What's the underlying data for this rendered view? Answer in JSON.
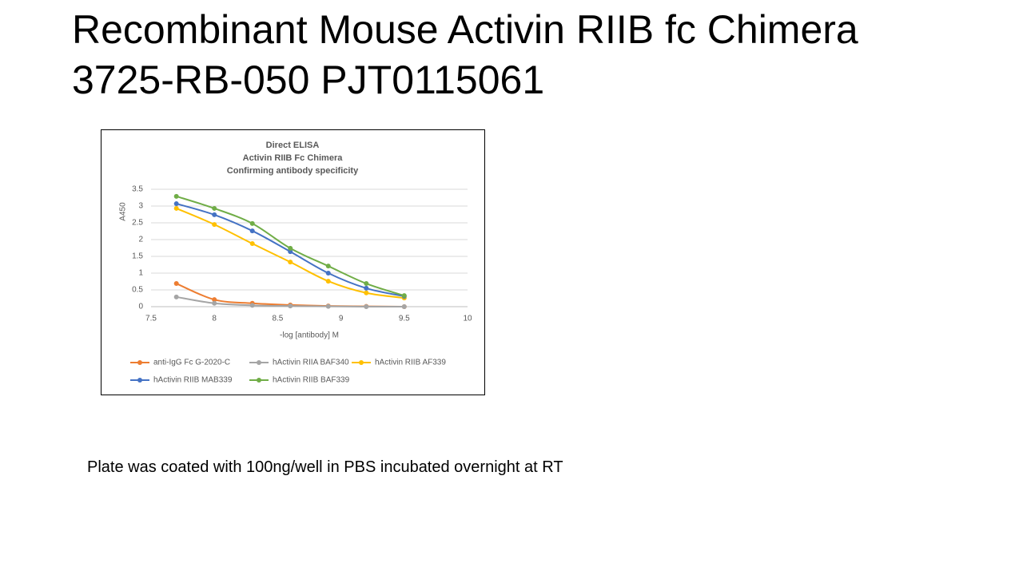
{
  "slide": {
    "title": [
      "Recombinant Mouse Activin RIIB fc Chimera",
      "3725-RB-050 PJT0115061"
    ],
    "note": "Plate was coated with 100ng/well in PBS incubated overnight at RT"
  },
  "chart_data": {
    "type": "line",
    "title": [
      "Direct ELISA",
      "Activin RIIB  Fc Chimera",
      "Confirming antibody specificity"
    ],
    "x_label": "-log [antibody] M",
    "y_label": "A450",
    "x": [
      7.7,
      8.0,
      8.3,
      8.6,
      8.9,
      9.2,
      9.5
    ],
    "xlim": [
      7.5,
      10
    ],
    "xticks": [
      7.5,
      8,
      8.5,
      9,
      9.5,
      10
    ],
    "ylim": [
      0,
      3.5
    ],
    "yticks": [
      0,
      0.5,
      1,
      1.5,
      2,
      2.5,
      3,
      3.5
    ],
    "grid": true,
    "legend": "bottom",
    "series": [
      {
        "name": "anti-IgG Fc G-2020-C",
        "color": "#ED7D31",
        "values": [
          0.69,
          0.21,
          0.1,
          0.05,
          0.02,
          0.01,
          0
        ]
      },
      {
        "name": "hActivin RIIA BAF340",
        "color": "#A5A5A5",
        "values": [
          0.29,
          0.1,
          0.04,
          0.02,
          0.01,
          0,
          0
        ]
      },
      {
        "name": "hActivin RIIB AF339",
        "color": "#FFC000",
        "values": [
          2.93,
          2.45,
          1.88,
          1.33,
          0.76,
          0.41,
          0.26
        ]
      },
      {
        "name": "hActivin RIIB MAB339",
        "color": "#4472C4",
        "values": [
          3.07,
          2.74,
          2.26,
          1.64,
          1.0,
          0.55,
          0.31
        ]
      },
      {
        "name": "hActivin RIIB BAF339",
        "color": "#70AD47",
        "values": [
          3.29,
          2.93,
          2.48,
          1.74,
          1.21,
          0.69,
          0.33
        ]
      }
    ]
  }
}
